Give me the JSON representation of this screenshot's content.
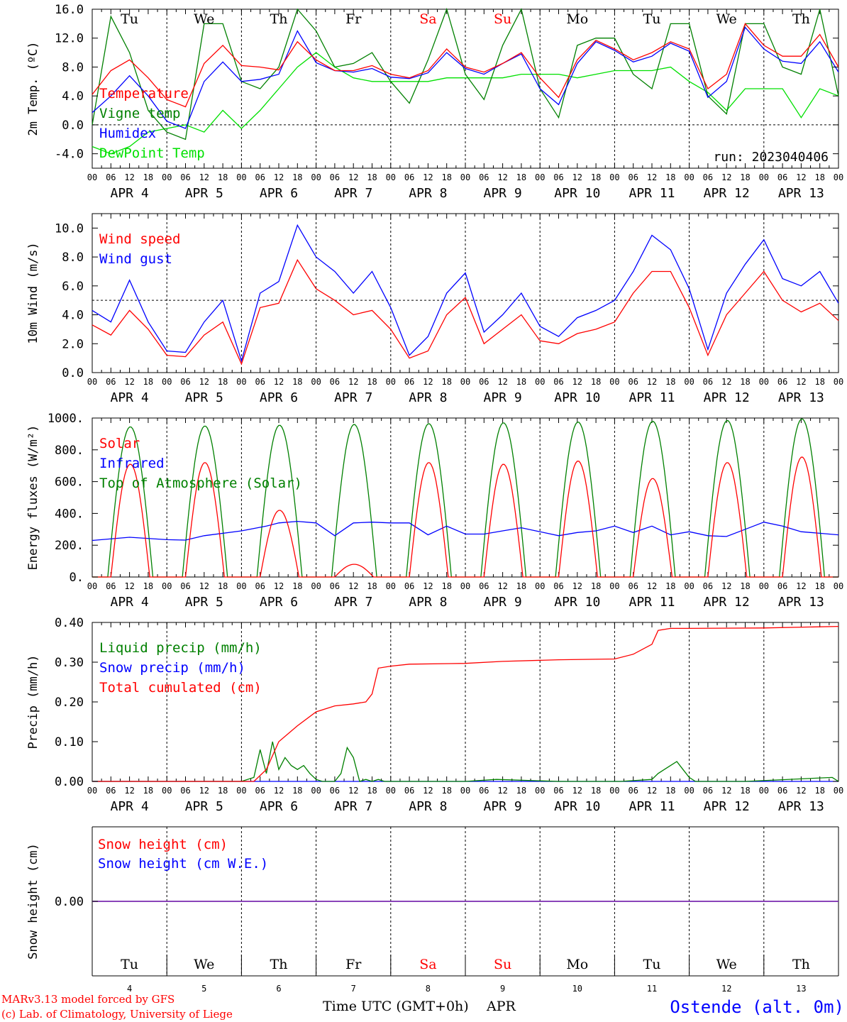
{
  "chart_data": [
    {
      "type": "line",
      "ylabel": "2m Temp. (ºC)",
      "ylim": [
        -6,
        16
      ],
      "yticks": [
        "16.0",
        "12.0",
        "8.0",
        "4.0",
        "0.0",
        "-4.0"
      ],
      "ytick_values": [
        16,
        12,
        8,
        4,
        0,
        -4
      ],
      "annotation": "run: 2023040406",
      "series": [
        {
          "name": "Temperature",
          "color": "#ff0000",
          "x": [
            0,
            6,
            12,
            18,
            24,
            30,
            36,
            42,
            48,
            54,
            60,
            66,
            72,
            78,
            84,
            90,
            96,
            102,
            108,
            114,
            120,
            126,
            132,
            138,
            144,
            150,
            156,
            162,
            168,
            174,
            180,
            186,
            192,
            198,
            204,
            210,
            216,
            222,
            228,
            234,
            240
          ],
          "y": [
            4.2,
            7.5,
            9.0,
            6.5,
            3.5,
            2.5,
            8.5,
            11,
            8.2,
            8.0,
            7.6,
            11.5,
            9.0,
            7.5,
            7.5,
            8.2,
            7.0,
            6.5,
            7.5,
            10.5,
            8.0,
            7.3,
            8.5,
            10,
            6.5,
            3.8,
            9.0,
            11.7,
            10.5,
            9.0,
            10,
            11.5,
            10.5,
            5.0,
            7.0,
            14.0,
            11.0,
            9.5,
            9.5,
            12.5,
            8.0
          ]
        },
        {
          "name": "Vigne temp",
          "color": "#008000",
          "x": [
            0,
            6,
            12,
            18,
            24,
            30,
            36,
            42,
            48,
            54,
            60,
            66,
            72,
            78,
            84,
            90,
            96,
            102,
            108,
            114,
            120,
            126,
            132,
            138,
            144,
            150,
            156,
            162,
            168,
            174,
            180,
            186,
            192,
            198,
            204,
            210,
            216,
            222,
            228,
            234,
            240
          ],
          "y": [
            0,
            15,
            10,
            2,
            -1,
            -2,
            14,
            14,
            6,
            5,
            8,
            16,
            13,
            8,
            8.5,
            10,
            6,
            3,
            9,
            16,
            7,
            3.5,
            11,
            16,
            5,
            1,
            11,
            12,
            12,
            7,
            5,
            14,
            14,
            4,
            1.5,
            14,
            14,
            8,
            7,
            16,
            4
          ]
        },
        {
          "name": "Humidex",
          "color": "#0000ff",
          "x": [
            0,
            6,
            12,
            18,
            24,
            30,
            36,
            42,
            48,
            54,
            60,
            66,
            72,
            78,
            84,
            90,
            96,
            102,
            108,
            114,
            120,
            126,
            132,
            138,
            144,
            150,
            156,
            162,
            168,
            174,
            180,
            186,
            192,
            198,
            204,
            210,
            216,
            222,
            228,
            234,
            240
          ],
          "y": [
            1.7,
            4.0,
            6.8,
            4.0,
            0.5,
            -0.5,
            6.0,
            8.7,
            6.0,
            6.3,
            7.0,
            13.0,
            8.6,
            7.5,
            7.3,
            7.8,
            6.6,
            6.4,
            7.2,
            10.0,
            7.8,
            7.0,
            8.5,
            9.8,
            5.0,
            2.8,
            8.5,
            11.5,
            10.3,
            8.7,
            9.5,
            11.3,
            10.2,
            3.8,
            6.0,
            13.5,
            10.5,
            8.8,
            8.5,
            11.5,
            7.3
          ]
        },
        {
          "name": "DewPoint Temp",
          "color": "#00e000",
          "x": [
            0,
            6,
            12,
            18,
            24,
            30,
            36,
            42,
            48,
            54,
            60,
            66,
            72,
            78,
            84,
            90,
            96,
            102,
            108,
            114,
            120,
            126,
            132,
            138,
            144,
            150,
            156,
            162,
            168,
            174,
            180,
            186,
            192,
            198,
            204,
            210,
            216,
            222,
            228,
            234,
            240
          ],
          "y": [
            -3,
            -4,
            -3,
            -1,
            -0.5,
            0,
            -1,
            2,
            -0.5,
            2,
            5,
            8,
            10,
            8,
            6.5,
            6,
            6,
            6,
            6,
            6.5,
            6.5,
            6.5,
            6.5,
            7,
            7,
            7,
            6.5,
            7,
            7.5,
            7.5,
            7.5,
            8,
            6,
            4.5,
            2,
            5,
            5,
            5,
            1,
            5,
            4
          ]
        }
      ]
    },
    {
      "type": "line",
      "ylabel": "10m Wind (m/s)",
      "ylim": [
        0,
        11
      ],
      "yticks": [
        "10.0",
        "8.0",
        "6.0",
        "4.0",
        "2.0",
        "0.0"
      ],
      "ytick_values": [
        10,
        8,
        6,
        4,
        2,
        0
      ],
      "reference_line": 5.0,
      "series": [
        {
          "name": "Wind speed",
          "color": "#ff0000",
          "x": [
            0,
            6,
            12,
            18,
            24,
            30,
            36,
            42,
            48,
            54,
            60,
            66,
            72,
            78,
            84,
            90,
            96,
            102,
            108,
            114,
            120,
            126,
            132,
            138,
            144,
            150,
            156,
            162,
            168,
            174,
            180,
            186,
            192,
            198,
            204,
            210,
            216,
            222,
            228,
            234,
            240
          ],
          "y": [
            3.3,
            2.6,
            4.3,
            3.0,
            1.2,
            1.1,
            2.6,
            3.5,
            0.6,
            4.5,
            4.8,
            7.8,
            5.8,
            5.0,
            4.0,
            4.3,
            3.0,
            1.0,
            1.5,
            4.0,
            5.2,
            2.0,
            3.0,
            4.0,
            2.2,
            2.0,
            2.7,
            3.0,
            3.5,
            5.5,
            7.0,
            7.0,
            4.5,
            1.2,
            4.0,
            5.5,
            7.0,
            5.0,
            4.2,
            4.8,
            3.6
          ]
        },
        {
          "name": "Wind gust",
          "color": "#0000ff",
          "x": [
            0,
            6,
            12,
            18,
            24,
            30,
            36,
            42,
            48,
            54,
            60,
            66,
            72,
            78,
            84,
            90,
            96,
            102,
            108,
            114,
            120,
            126,
            132,
            138,
            144,
            150,
            156,
            162,
            168,
            174,
            180,
            186,
            192,
            198,
            204,
            210,
            216,
            222,
            228,
            234,
            240
          ],
          "y": [
            4.3,
            3.5,
            6.4,
            3.5,
            1.5,
            1.4,
            3.5,
            5.0,
            0.8,
            5.5,
            6.3,
            10.2,
            8.0,
            7.0,
            5.5,
            7.0,
            4.5,
            1.2,
            2.5,
            5.5,
            6.9,
            2.8,
            4.0,
            5.5,
            3.2,
            2.5,
            3.8,
            4.3,
            5.0,
            7.0,
            9.5,
            8.5,
            5.8,
            1.6,
            5.5,
            7.5,
            9.2,
            6.5,
            6.0,
            7.0,
            4.8
          ]
        }
      ]
    },
    {
      "type": "line",
      "ylabel": "Energy fluxes (W/m²)",
      "ylim": [
        0,
        1000
      ],
      "yticks": [
        "1000.",
        "800.",
        "600.",
        "400.",
        "200.",
        "0."
      ],
      "ytick_values": [
        1000,
        800,
        600,
        400,
        200,
        0
      ],
      "series": [
        {
          "name": "Solar",
          "color": "#ff0000",
          "day_peaks": [
            710,
            720,
            420,
            80,
            720,
            710,
            730,
            620,
            720,
            755
          ]
        },
        {
          "name": "Infrared",
          "color": "#0000ff",
          "x": [
            0,
            12,
            24,
            30,
            36,
            48,
            56,
            60,
            66,
            72,
            78,
            84,
            90,
            96,
            102,
            108,
            114,
            120,
            126,
            132,
            138,
            144,
            150,
            156,
            162,
            168,
            174,
            180,
            186,
            192,
            198,
            204,
            210,
            216,
            222,
            228,
            234,
            240
          ],
          "y": [
            230,
            250,
            235,
            232,
            260,
            290,
            320,
            340,
            350,
            340,
            260,
            340,
            345,
            340,
            340,
            265,
            320,
            270,
            270,
            290,
            310,
            285,
            260,
            280,
            290,
            320,
            280,
            320,
            265,
            285,
            260,
            255,
            300,
            345,
            320,
            285,
            275,
            265
          ]
        },
        {
          "name": "Top of Atmosphere (Solar)",
          "color": "#008000",
          "day_peaks": [
            945,
            950,
            955,
            960,
            965,
            970,
            975,
            980,
            985,
            995
          ]
        }
      ]
    },
    {
      "type": "line",
      "ylabel": "Precip (mm/h)",
      "ylim": [
        0,
        0.4
      ],
      "yticks": [
        "0.40",
        "0.30",
        "0.20",
        "0.10",
        "0.00"
      ],
      "ytick_values": [
        0.4,
        0.3,
        0.2,
        0.1,
        0
      ],
      "series": [
        {
          "name": "Liquid precip (mm/h)",
          "color": "#008000",
          "x": [
            0,
            48,
            52,
            54,
            56,
            58,
            60,
            62,
            64,
            66,
            68,
            70,
            72,
            74,
            76,
            78,
            80,
            82,
            84,
            86,
            88,
            90,
            92,
            94,
            96,
            98,
            120,
            130,
            150,
            170,
            180,
            182,
            184,
            186,
            188,
            190,
            192,
            194,
            196,
            210,
            238,
            240
          ],
          "y": [
            0,
            0,
            0.01,
            0.08,
            0.02,
            0.1,
            0.03,
            0.06,
            0.04,
            0.03,
            0.04,
            0.02,
            0.005,
            0,
            0,
            0,
            0.02,
            0.085,
            0.06,
            0,
            0.005,
            0,
            0.005,
            0,
            0,
            0,
            0,
            0.005,
            0,
            0,
            0.005,
            0.02,
            0.03,
            0.04,
            0.05,
            0.03,
            0.01,
            0,
            0,
            0,
            0.01,
            0
          ]
        },
        {
          "name": "Snow precip (mm/h)",
          "color": "#0000ff",
          "x": [
            0,
            240
          ],
          "y": [
            0,
            0
          ]
        },
        {
          "name": "Total cumulated (cm)",
          "color": "#ff0000",
          "x": [
            0,
            52,
            56,
            60,
            66,
            72,
            78,
            84,
            88,
            90,
            92,
            96,
            102,
            120,
            132,
            150,
            168,
            174,
            180,
            182,
            186,
            192,
            216,
            240
          ],
          "y": [
            0,
            0,
            0.03,
            0.1,
            0.14,
            0.175,
            0.19,
            0.195,
            0.2,
            0.22,
            0.285,
            0.29,
            0.295,
            0.297,
            0.302,
            0.306,
            0.308,
            0.32,
            0.345,
            0.38,
            0.385,
            0.385,
            0.386,
            0.39
          ]
        }
      ]
    },
    {
      "type": "line",
      "ylabel": "Snow height (cm)",
      "yticks": [
        "0.00"
      ],
      "ytick_values": [
        0
      ],
      "series": [
        {
          "name": "Snow height (cm)",
          "color": "#ff0000",
          "x": [
            0,
            240
          ],
          "y": [
            0,
            0
          ]
        },
        {
          "name": "Snow height (cm W.E.)",
          "color": "#0000ff",
          "x": [
            0,
            240
          ],
          "y": [
            0,
            0
          ]
        }
      ]
    }
  ],
  "x_axis": {
    "hour_labels": [
      "00",
      "06",
      "12",
      "18"
    ],
    "end_label": "00",
    "date_labels": [
      "APR  4",
      "APR  5",
      "APR  6",
      "APR  7",
      "APR  8",
      "APR  9",
      "APR 10",
      "APR 11",
      "APR 12",
      "APR 13"
    ],
    "weekdays": [
      "Tu",
      "We",
      "Th",
      "Fr",
      "Sa",
      "Su",
      "Mo",
      "Tu",
      "We",
      "Th"
    ],
    "weekday_colors": [
      "#000000",
      "#000000",
      "#000000",
      "#000000",
      "#ff0000",
      "#ff0000",
      "#000000",
      "#000000",
      "#000000",
      "#000000"
    ],
    "day_numbers": [
      "4",
      "5",
      "6",
      "7",
      "8",
      "9",
      "10",
      "11",
      "12",
      "13"
    ],
    "title": "Time UTC (GMT+0h)",
    "month": "APR"
  },
  "footer": {
    "credit_line1": "MARv3.13 model forced by GFS",
    "credit_line2": "(c) Lab. of Climatology, University of Liege",
    "station": "Ostende (alt. 0m)",
    "credit_color": "#ff0000",
    "station_color": "#0000ff"
  }
}
